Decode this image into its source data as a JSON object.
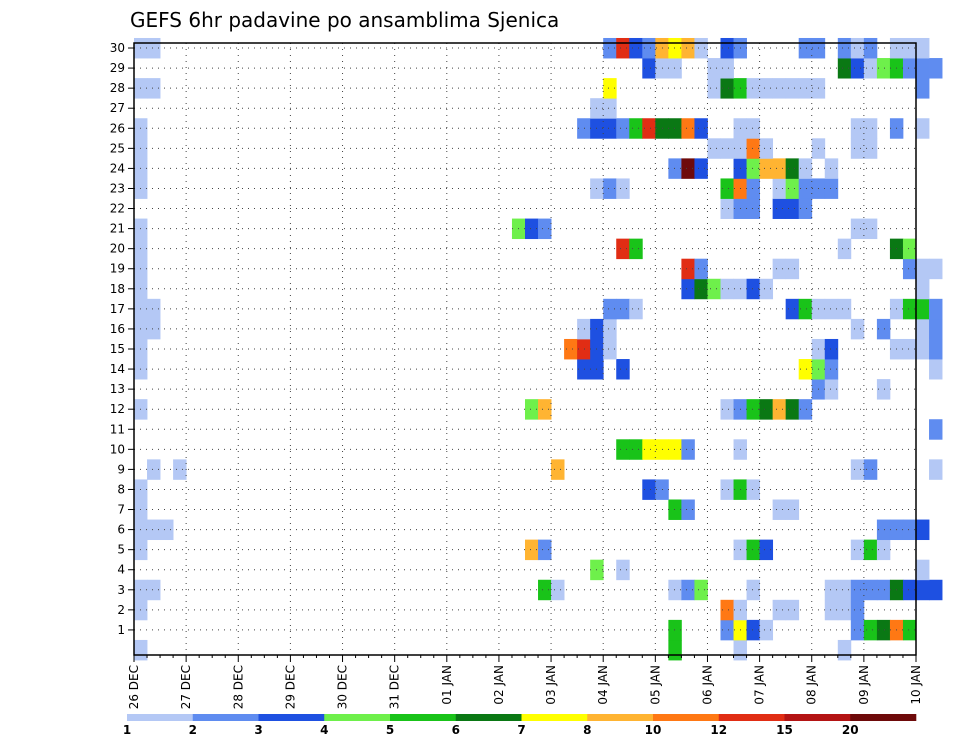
{
  "chart_data": {
    "type": "heatmap",
    "title": "GEFS 6hr padavine po ansamblima Sjenica",
    "xlabel": "",
    "ylabel": "",
    "x_tick_labels": [
      "26 DEC",
      "27 DEC",
      "28 DEC",
      "29 DEC",
      "30 DEC",
      "31 DEC",
      "01 JAN",
      "02 JAN",
      "03 JAN",
      "04 JAN",
      "05 JAN",
      "06 JAN",
      "07 JAN",
      "08 JAN",
      "09 JAN",
      "10 JAN"
    ],
    "y_tick_labels": [
      "1",
      "2",
      "3",
      "4",
      "5",
      "6",
      "7",
      "8",
      "9",
      "10",
      "11",
      "12",
      "13",
      "14",
      "15",
      "16",
      "17",
      "18",
      "19",
      "20",
      "21",
      "22",
      "23",
      "24",
      "25",
      "26",
      "27",
      "28",
      "29",
      "30"
    ],
    "x_range": [
      "26 DEC",
      "10 JAN"
    ],
    "y_range": [
      1,
      30
    ],
    "grid": true,
    "legend": {
      "position": "bottom",
      "labels": [
        "1",
        "2",
        "3",
        "4",
        "5",
        "6",
        "7",
        "8",
        "10",
        "12",
        "15",
        "20"
      ],
      "colors": [
        "#b4c8f5",
        "#5f8cf0",
        "#1e50e1",
        "#6ef04b",
        "#19c319",
        "#0a7814",
        "#ffff00",
        "#ffb432",
        "#ff7814",
        "#e12d14",
        "#b41414",
        "#6e0a0a"
      ]
    },
    "colors": [
      "#b4c8f5",
      "#5f8cf0",
      "#1e50e1",
      "#6ef04b",
      "#19c319",
      "#0a7814",
      "#ffff00",
      "#ffb432",
      "#ff7814",
      "#e12d14",
      "#b41414",
      "#6e0a0a"
    ],
    "cells_note": "x = forecast step (6 h each) after 26 DEC 00z, y = ensemble member, c = color class index (0..11)",
    "cells": [
      {
        "x": 0,
        "y": 0,
        "c": 0
      },
      {
        "x": 41,
        "y": 0,
        "c": 4
      },
      {
        "x": 46,
        "y": 0,
        "c": 0
      },
      {
        "x": 54,
        "y": 0,
        "c": 0
      },
      {
        "x": 41,
        "y": 1,
        "c": 4
      },
      {
        "x": 45,
        "y": 1,
        "c": 1
      },
      {
        "x": 46,
        "y": 1,
        "c": 6
      },
      {
        "x": 47,
        "y": 1,
        "c": 2
      },
      {
        "x": 48,
        "y": 1,
        "c": 0
      },
      {
        "x": 55,
        "y": 1,
        "c": 1
      },
      {
        "x": 56,
        "y": 1,
        "c": 4
      },
      {
        "x": 57,
        "y": 1,
        "c": 5
      },
      {
        "x": 58,
        "y": 1,
        "c": 8
      },
      {
        "x": 59,
        "y": 1,
        "c": 4
      },
      {
        "x": 0,
        "y": 2,
        "c": 0
      },
      {
        "x": 45,
        "y": 2,
        "c": 8
      },
      {
        "x": 46,
        "y": 2,
        "c": 0
      },
      {
        "x": 49,
        "y": 2,
        "c": 0
      },
      {
        "x": 50,
        "y": 2,
        "c": 0
      },
      {
        "x": 53,
        "y": 2,
        "c": 0
      },
      {
        "x": 54,
        "y": 2,
        "c": 0
      },
      {
        "x": 55,
        "y": 2,
        "c": 1
      },
      {
        "x": 0,
        "y": 3,
        "c": 0
      },
      {
        "x": 1,
        "y": 3,
        "c": 0
      },
      {
        "x": 31,
        "y": 3,
        "c": 4
      },
      {
        "x": 32,
        "y": 3,
        "c": 0
      },
      {
        "x": 41,
        "y": 3,
        "c": 0
      },
      {
        "x": 42,
        "y": 3,
        "c": 1
      },
      {
        "x": 43,
        "y": 3,
        "c": 3
      },
      {
        "x": 47,
        "y": 3,
        "c": 0
      },
      {
        "x": 53,
        "y": 3,
        "c": 0
      },
      {
        "x": 54,
        "y": 3,
        "c": 0
      },
      {
        "x": 55,
        "y": 3,
        "c": 1
      },
      {
        "x": 56,
        "y": 3,
        "c": 1
      },
      {
        "x": 57,
        "y": 3,
        "c": 1
      },
      {
        "x": 58,
        "y": 3,
        "c": 5
      },
      {
        "x": 59,
        "y": 3,
        "c": 2
      },
      {
        "x": 60,
        "y": 3,
        "c": 2
      },
      {
        "x": 61,
        "y": 3,
        "c": 2
      },
      {
        "x": 35,
        "y": 4,
        "c": 3
      },
      {
        "x": 37,
        "y": 4,
        "c": 0
      },
      {
        "x": 60,
        "y": 4,
        "c": 0
      },
      {
        "x": 0,
        "y": 5,
        "c": 0
      },
      {
        "x": 30,
        "y": 5,
        "c": 7
      },
      {
        "x": 31,
        "y": 5,
        "c": 1
      },
      {
        "x": 46,
        "y": 5,
        "c": 0
      },
      {
        "x": 47,
        "y": 5,
        "c": 4
      },
      {
        "x": 48,
        "y": 5,
        "c": 2
      },
      {
        "x": 55,
        "y": 5,
        "c": 0
      },
      {
        "x": 56,
        "y": 5,
        "c": 4
      },
      {
        "x": 57,
        "y": 5,
        "c": 0
      },
      {
        "x": 0,
        "y": 6,
        "c": 0
      },
      {
        "x": 1,
        "y": 6,
        "c": 0
      },
      {
        "x": 2,
        "y": 6,
        "c": 0
      },
      {
        "x": 57,
        "y": 6,
        "c": 1
      },
      {
        "x": 58,
        "y": 6,
        "c": 1
      },
      {
        "x": 59,
        "y": 6,
        "c": 1
      },
      {
        "x": 60,
        "y": 6,
        "c": 2
      },
      {
        "x": 0,
        "y": 7,
        "c": 0
      },
      {
        "x": 41,
        "y": 7,
        "c": 4
      },
      {
        "x": 42,
        "y": 7,
        "c": 1
      },
      {
        "x": 49,
        "y": 7,
        "c": 0
      },
      {
        "x": 50,
        "y": 7,
        "c": 0
      },
      {
        "x": 0,
        "y": 8,
        "c": 0
      },
      {
        "x": 39,
        "y": 8,
        "c": 2
      },
      {
        "x": 40,
        "y": 8,
        "c": 1
      },
      {
        "x": 45,
        "y": 8,
        "c": 0
      },
      {
        "x": 46,
        "y": 8,
        "c": 4
      },
      {
        "x": 47,
        "y": 8,
        "c": 0
      },
      {
        "x": 1,
        "y": 9,
        "c": 0
      },
      {
        "x": 3,
        "y": 9,
        "c": 0
      },
      {
        "x": 32,
        "y": 9,
        "c": 7
      },
      {
        "x": 55,
        "y": 9,
        "c": 0
      },
      {
        "x": 56,
        "y": 9,
        "c": 1
      },
      {
        "x": 61,
        "y": 9,
        "c": 0
      },
      {
        "x": 37,
        "y": 10,
        "c": 4
      },
      {
        "x": 38,
        "y": 10,
        "c": 4
      },
      {
        "x": 39,
        "y": 10,
        "c": 6
      },
      {
        "x": 40,
        "y": 10,
        "c": 6
      },
      {
        "x": 41,
        "y": 10,
        "c": 6
      },
      {
        "x": 42,
        "y": 10,
        "c": 1
      },
      {
        "x": 46,
        "y": 10,
        "c": 0
      },
      {
        "x": 61,
        "y": 11,
        "c": 1
      },
      {
        "x": 0,
        "y": 12,
        "c": 0
      },
      {
        "x": 30,
        "y": 12,
        "c": 3
      },
      {
        "x": 31,
        "y": 12,
        "c": 7
      },
      {
        "x": 45,
        "y": 12,
        "c": 0
      },
      {
        "x": 46,
        "y": 12,
        "c": 1
      },
      {
        "x": 47,
        "y": 12,
        "c": 4
      },
      {
        "x": 48,
        "y": 12,
        "c": 5
      },
      {
        "x": 49,
        "y": 12,
        "c": 7
      },
      {
        "x": 50,
        "y": 12,
        "c": 5
      },
      {
        "x": 51,
        "y": 12,
        "c": 1
      },
      {
        "x": 52,
        "y": 13,
        "c": 1
      },
      {
        "x": 53,
        "y": 13,
        "c": 0
      },
      {
        "x": 57,
        "y": 13,
        "c": 0
      },
      {
        "x": 0,
        "y": 14,
        "c": 0
      },
      {
        "x": 34,
        "y": 14,
        "c": 2
      },
      {
        "x": 35,
        "y": 14,
        "c": 2
      },
      {
        "x": 37,
        "y": 14,
        "c": 2
      },
      {
        "x": 51,
        "y": 14,
        "c": 6
      },
      {
        "x": 52,
        "y": 14,
        "c": 3
      },
      {
        "x": 53,
        "y": 14,
        "c": 1
      },
      {
        "x": 61,
        "y": 14,
        "c": 0
      },
      {
        "x": 0,
        "y": 15,
        "c": 0
      },
      {
        "x": 33,
        "y": 15,
        "c": 8
      },
      {
        "x": 34,
        "y": 15,
        "c": 9
      },
      {
        "x": 35,
        "y": 15,
        "c": 2
      },
      {
        "x": 36,
        "y": 15,
        "c": 0
      },
      {
        "x": 52,
        "y": 15,
        "c": 0
      },
      {
        "x": 53,
        "y": 15,
        "c": 2
      },
      {
        "x": 58,
        "y": 15,
        "c": 0
      },
      {
        "x": 59,
        "y": 15,
        "c": 0
      },
      {
        "x": 60,
        "y": 15,
        "c": 0
      },
      {
        "x": 61,
        "y": 15,
        "c": 1
      },
      {
        "x": 0,
        "y": 16,
        "c": 0
      },
      {
        "x": 1,
        "y": 16,
        "c": 0
      },
      {
        "x": 34,
        "y": 16,
        "c": 0
      },
      {
        "x": 35,
        "y": 16,
        "c": 2
      },
      {
        "x": 36,
        "y": 16,
        "c": 0
      },
      {
        "x": 55,
        "y": 16,
        "c": 0
      },
      {
        "x": 57,
        "y": 16,
        "c": 1
      },
      {
        "x": 60,
        "y": 16,
        "c": 0
      },
      {
        "x": 61,
        "y": 16,
        "c": 1
      },
      {
        "x": 0,
        "y": 17,
        "c": 0
      },
      {
        "x": 1,
        "y": 17,
        "c": 0
      },
      {
        "x": 36,
        "y": 17,
        "c": 1
      },
      {
        "x": 37,
        "y": 17,
        "c": 1
      },
      {
        "x": 38,
        "y": 17,
        "c": 0
      },
      {
        "x": 50,
        "y": 17,
        "c": 2
      },
      {
        "x": 51,
        "y": 17,
        "c": 4
      },
      {
        "x": 52,
        "y": 17,
        "c": 0
      },
      {
        "x": 53,
        "y": 17,
        "c": 0
      },
      {
        "x": 54,
        "y": 17,
        "c": 0
      },
      {
        "x": 58,
        "y": 17,
        "c": 0
      },
      {
        "x": 59,
        "y": 17,
        "c": 4
      },
      {
        "x": 60,
        "y": 17,
        "c": 4
      },
      {
        "x": 61,
        "y": 17,
        "c": 1
      },
      {
        "x": 0,
        "y": 18,
        "c": 0
      },
      {
        "x": 42,
        "y": 18,
        "c": 2
      },
      {
        "x": 43,
        "y": 18,
        "c": 5
      },
      {
        "x": 44,
        "y": 18,
        "c": 3
      },
      {
        "x": 45,
        "y": 18,
        "c": 0
      },
      {
        "x": 46,
        "y": 18,
        "c": 0
      },
      {
        "x": 47,
        "y": 18,
        "c": 2
      },
      {
        "x": 48,
        "y": 18,
        "c": 0
      },
      {
        "x": 60,
        "y": 18,
        "c": 0
      },
      {
        "x": 0,
        "y": 19,
        "c": 0
      },
      {
        "x": 42,
        "y": 19,
        "c": 9
      },
      {
        "x": 43,
        "y": 19,
        "c": 1
      },
      {
        "x": 49,
        "y": 19,
        "c": 0
      },
      {
        "x": 50,
        "y": 19,
        "c": 0
      },
      {
        "x": 59,
        "y": 19,
        "c": 1
      },
      {
        "x": 60,
        "y": 19,
        "c": 0
      },
      {
        "x": 61,
        "y": 19,
        "c": 0
      },
      {
        "x": 0,
        "y": 20,
        "c": 0
      },
      {
        "x": 37,
        "y": 20,
        "c": 9
      },
      {
        "x": 38,
        "y": 20,
        "c": 4
      },
      {
        "x": 54,
        "y": 20,
        "c": 0
      },
      {
        "x": 58,
        "y": 20,
        "c": 5
      },
      {
        "x": 59,
        "y": 20,
        "c": 3
      },
      {
        "x": 0,
        "y": 21,
        "c": 0
      },
      {
        "x": 29,
        "y": 21,
        "c": 3
      },
      {
        "x": 30,
        "y": 21,
        "c": 2
      },
      {
        "x": 31,
        "y": 21,
        "c": 1
      },
      {
        "x": 55,
        "y": 21,
        "c": 0
      },
      {
        "x": 56,
        "y": 21,
        "c": 0
      },
      {
        "x": 45,
        "y": 22,
        "c": 0
      },
      {
        "x": 46,
        "y": 22,
        "c": 1
      },
      {
        "x": 47,
        "y": 22,
        "c": 1
      },
      {
        "x": 49,
        "y": 22,
        "c": 2
      },
      {
        "x": 50,
        "y": 22,
        "c": 2
      },
      {
        "x": 51,
        "y": 22,
        "c": 1
      },
      {
        "x": 0,
        "y": 23,
        "c": 0
      },
      {
        "x": 35,
        "y": 23,
        "c": 0
      },
      {
        "x": 36,
        "y": 23,
        "c": 1
      },
      {
        "x": 37,
        "y": 23,
        "c": 0
      },
      {
        "x": 45,
        "y": 23,
        "c": 4
      },
      {
        "x": 46,
        "y": 23,
        "c": 8
      },
      {
        "x": 47,
        "y": 23,
        "c": 1
      },
      {
        "x": 49,
        "y": 23,
        "c": 0
      },
      {
        "x": 50,
        "y": 23,
        "c": 3
      },
      {
        "x": 51,
        "y": 23,
        "c": 1
      },
      {
        "x": 52,
        "y": 23,
        "c": 1
      },
      {
        "x": 53,
        "y": 23,
        "c": 1
      },
      {
        "x": 0,
        "y": 24,
        "c": 0
      },
      {
        "x": 41,
        "y": 24,
        "c": 1
      },
      {
        "x": 42,
        "y": 24,
        "c": 11
      },
      {
        "x": 43,
        "y": 24,
        "c": 2
      },
      {
        "x": 46,
        "y": 24,
        "c": 2
      },
      {
        "x": 47,
        "y": 24,
        "c": 3
      },
      {
        "x": 48,
        "y": 24,
        "c": 7
      },
      {
        "x": 49,
        "y": 24,
        "c": 7
      },
      {
        "x": 50,
        "y": 24,
        "c": 5
      },
      {
        "x": 51,
        "y": 24,
        "c": 0
      },
      {
        "x": 53,
        "y": 24,
        "c": 0
      },
      {
        "x": 0,
        "y": 25,
        "c": 0
      },
      {
        "x": 44,
        "y": 25,
        "c": 0
      },
      {
        "x": 45,
        "y": 25,
        "c": 0
      },
      {
        "x": 46,
        "y": 25,
        "c": 0
      },
      {
        "x": 47,
        "y": 25,
        "c": 8
      },
      {
        "x": 48,
        "y": 25,
        "c": 0
      },
      {
        "x": 52,
        "y": 25,
        "c": 0
      },
      {
        "x": 55,
        "y": 25,
        "c": 0
      },
      {
        "x": 56,
        "y": 25,
        "c": 0
      },
      {
        "x": 0,
        "y": 26,
        "c": 0
      },
      {
        "x": 34,
        "y": 26,
        "c": 1
      },
      {
        "x": 35,
        "y": 26,
        "c": 2
      },
      {
        "x": 36,
        "y": 26,
        "c": 2
      },
      {
        "x": 37,
        "y": 26,
        "c": 1
      },
      {
        "x": 38,
        "y": 26,
        "c": 4
      },
      {
        "x": 39,
        "y": 26,
        "c": 9
      },
      {
        "x": 40,
        "y": 26,
        "c": 5
      },
      {
        "x": 41,
        "y": 26,
        "c": 5
      },
      {
        "x": 42,
        "y": 26,
        "c": 8
      },
      {
        "x": 43,
        "y": 26,
        "c": 2
      },
      {
        "x": 46,
        "y": 26,
        "c": 0
      },
      {
        "x": 47,
        "y": 26,
        "c": 0
      },
      {
        "x": 55,
        "y": 26,
        "c": 0
      },
      {
        "x": 56,
        "y": 26,
        "c": 0
      },
      {
        "x": 58,
        "y": 26,
        "c": 1
      },
      {
        "x": 60,
        "y": 26,
        "c": 0
      },
      {
        "x": 35,
        "y": 27,
        "c": 0
      },
      {
        "x": 36,
        "y": 27,
        "c": 0
      },
      {
        "x": 0,
        "y": 28,
        "c": 0
      },
      {
        "x": 1,
        "y": 28,
        "c": 0
      },
      {
        "x": 36,
        "y": 28,
        "c": 6
      },
      {
        "x": 44,
        "y": 28,
        "c": 0
      },
      {
        "x": 45,
        "y": 28,
        "c": 5
      },
      {
        "x": 46,
        "y": 28,
        "c": 4
      },
      {
        "x": 47,
        "y": 28,
        "c": 0
      },
      {
        "x": 48,
        "y": 28,
        "c": 0
      },
      {
        "x": 49,
        "y": 28,
        "c": 0
      },
      {
        "x": 50,
        "y": 28,
        "c": 0
      },
      {
        "x": 51,
        "y": 28,
        "c": 0
      },
      {
        "x": 52,
        "y": 28,
        "c": 0
      },
      {
        "x": 60,
        "y": 28,
        "c": 1
      },
      {
        "x": 39,
        "y": 29,
        "c": 2
      },
      {
        "x": 40,
        "y": 29,
        "c": 0
      },
      {
        "x": 41,
        "y": 29,
        "c": 0
      },
      {
        "x": 44,
        "y": 29,
        "c": 0
      },
      {
        "x": 45,
        "y": 29,
        "c": 0
      },
      {
        "x": 54,
        "y": 29,
        "c": 5
      },
      {
        "x": 55,
        "y": 29,
        "c": 2
      },
      {
        "x": 56,
        "y": 29,
        "c": 0
      },
      {
        "x": 57,
        "y": 29,
        "c": 3
      },
      {
        "x": 58,
        "y": 29,
        "c": 4
      },
      {
        "x": 59,
        "y": 29,
        "c": 1
      },
      {
        "x": 60,
        "y": 29,
        "c": 1
      },
      {
        "x": 61,
        "y": 29,
        "c": 1
      },
      {
        "x": 0,
        "y": 30,
        "c": 0
      },
      {
        "x": 1,
        "y": 30,
        "c": 0
      },
      {
        "x": 36,
        "y": 30,
        "c": 1
      },
      {
        "x": 37,
        "y": 30,
        "c": 9
      },
      {
        "x": 38,
        "y": 30,
        "c": 2
      },
      {
        "x": 39,
        "y": 30,
        "c": 1
      },
      {
        "x": 40,
        "y": 30,
        "c": 7
      },
      {
        "x": 41,
        "y": 30,
        "c": 6
      },
      {
        "x": 42,
        "y": 30,
        "c": 7
      },
      {
        "x": 43,
        "y": 30,
        "c": 0
      },
      {
        "x": 45,
        "y": 30,
        "c": 2
      },
      {
        "x": 46,
        "y": 30,
        "c": 1
      },
      {
        "x": 51,
        "y": 30,
        "c": 1
      },
      {
        "x": 52,
        "y": 30,
        "c": 1
      },
      {
        "x": 54,
        "y": 30,
        "c": 1
      },
      {
        "x": 55,
        "y": 30,
        "c": 0
      },
      {
        "x": 56,
        "y": 30,
        "c": 1
      },
      {
        "x": 58,
        "y": 30,
        "c": 0
      },
      {
        "x": 59,
        "y": 30,
        "c": 0
      },
      {
        "x": 60,
        "y": 30,
        "c": 0
      }
    ]
  }
}
